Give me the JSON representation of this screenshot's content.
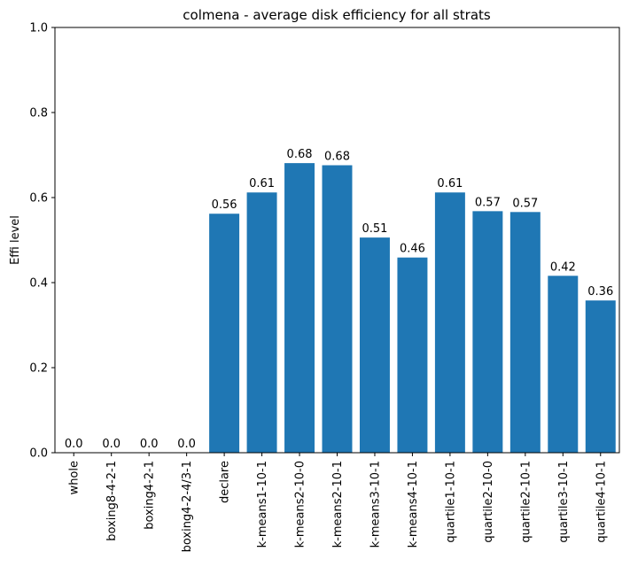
{
  "chart_data": {
    "type": "bar",
    "title": "colmena - average disk efficiency for all strats",
    "xlabel": "",
    "ylabel": "Effi level",
    "ylim": [
      0,
      1.0
    ],
    "yticks": [
      "0.0",
      "0.2",
      "0.4",
      "0.6",
      "0.8",
      "1.0"
    ],
    "categories": [
      "whole",
      "boxing8-4-2-1",
      "boxing4-2-1",
      "boxing4-2-4/3-1",
      "declare",
      "k-means1-10-1",
      "k-means2-10-0",
      "k-means2-10-1",
      "k-means3-10-1",
      "k-means4-10-1",
      "quartile1-10-1",
      "quartile2-10-0",
      "quartile2-10-1",
      "quartile3-10-1",
      "quartile4-10-1"
    ],
    "values": [
      0.0,
      0.0,
      0.0,
      0.0,
      0.562,
      0.612,
      0.681,
      0.676,
      0.506,
      0.459,
      0.612,
      0.568,
      0.566,
      0.416,
      0.358
    ],
    "data_labels": [
      "0.0",
      "0.0",
      "0.0",
      "0.0",
      "0.56",
      "0.61",
      "0.68",
      "0.68",
      "0.51",
      "0.46",
      "0.61",
      "0.57",
      "0.57",
      "0.42",
      "0.36"
    ],
    "bar_color": "#1f77b4",
    "grid": false,
    "legend": "none"
  }
}
